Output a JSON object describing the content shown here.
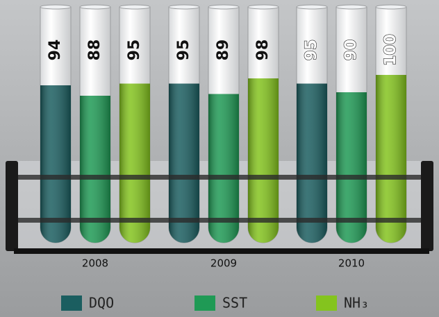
{
  "chart_data": {
    "type": "bar",
    "categories": [
      "2008",
      "2009",
      "2010"
    ],
    "series": [
      {
        "name": "DQO",
        "color": "#1b5e60",
        "values": [
          94,
          95,
          95
        ]
      },
      {
        "name": "SST",
        "color": "#1f9a55",
        "values": [
          88,
          89,
          90
        ]
      },
      {
        "name": "NH₃",
        "color": "#84c41e",
        "values": [
          95,
          98,
          100
        ]
      }
    ],
    "ylim": [
      0,
      100
    ]
  }
}
